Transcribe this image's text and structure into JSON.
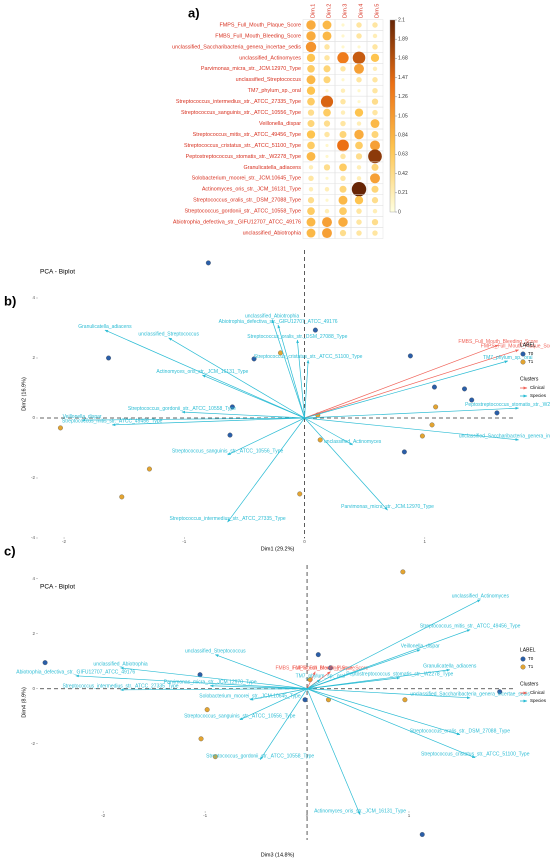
{
  "chart_data": [
    {
      "type": "corrplot",
      "panel": "a)",
      "rows": [
        "FMPS_Full_Mouth_Plaque_Score",
        "FMBS_Full_Mouth_Bleeding_Score",
        "unclassified_Saccharibacteria_genera_incertae_sedis",
        "unclassified_Actinomyces",
        "Parvimonas_micra_str._JCM.12970_Type",
        "unclassified_Streptococcus",
        "TM7_phylum_sp._oral",
        "Streptococcus_intermedius_str._ATCC_27335_Type",
        "Streptococcus_sanguinis_str._ATCC_10556_Type",
        "Veillonella_dispar",
        "Streptococcus_mitis_str._ATCC_49456_Type",
        "Streptococcus_cristatus_str._ATCC_51100_Type",
        "Peptostreptococcus_stomatis_str._W2278_Type",
        "Granulicatella_adiacens",
        "Solobacterium_moorei_str._JCM.10645_Type",
        "Actinomyces_oris_str._JCM_16131_Type",
        "Streptococcus_oralis_str._DSM_27088_Type",
        "Streptococcus_gordonii_str._ATCC_10558_Type",
        "Abiotrophia_defectiva_str._GIFU12707_ATCC_49176",
        "unclassified_Abiotrophia"
      ],
      "columns": [
        "Dim.1",
        "Dim.2",
        "Dim.3",
        "Dim.4",
        "Dim.5"
      ],
      "values": [
        [
          0.9,
          0.8,
          0.1,
          0.3,
          0.3
        ],
        [
          0.9,
          0.8,
          0.1,
          0.3,
          0.2
        ],
        [
          1.1,
          0.3,
          0.1,
          0.1,
          0.3
        ],
        [
          0.7,
          0.3,
          1.3,
          1.6,
          0.7
        ],
        [
          0.6,
          0.5,
          0.3,
          1.0,
          0.2
        ],
        [
          0.8,
          0.5,
          0.1,
          0.3,
          0.3
        ],
        [
          0.7,
          0.1,
          0.2,
          0.1,
          0.3
        ],
        [
          0.6,
          1.5,
          0.3,
          0.1,
          0.4
        ],
        [
          0.4,
          0.6,
          0.2,
          0.7,
          0.3
        ],
        [
          0.5,
          0.4,
          0.3,
          0.2,
          0.8
        ],
        [
          0.7,
          0.3,
          0.5,
          0.9,
          0.5
        ],
        [
          0.6,
          0.1,
          1.4,
          0.6,
          1.0
        ],
        [
          0.8,
          0.1,
          0.3,
          0.4,
          1.9
        ],
        [
          0.2,
          0.4,
          0.6,
          0.2,
          0.5
        ],
        [
          0.3,
          0.1,
          0.3,
          0.2,
          1.0
        ],
        [
          0.2,
          0.2,
          0.5,
          2.1,
          0.5
        ],
        [
          0.4,
          0.1,
          0.8,
          0.7,
          0.4
        ],
        [
          0.6,
          0.2,
          0.6,
          0.3,
          0.2
        ],
        [
          0.8,
          1.0,
          0.9,
          0.3,
          0.4
        ],
        [
          0.8,
          1.0,
          0.4,
          0.3,
          0.3
        ]
      ],
      "colors": [
        "#ffffe0",
        "#fec44f",
        "#ec7014",
        "#662506"
      ],
      "clim": [
        0,
        2.1
      ],
      "cticks": [
        0,
        0.21,
        0.42,
        0.63,
        0.84,
        1.05,
        1.26,
        1.47,
        1.68,
        1.89,
        2.1
      ]
    },
    {
      "type": "biplot",
      "panel": "b)",
      "title": "PCA - Biplot",
      "xlabel": "Dim1 (29.2%)",
      "ylabel": "Dim2 (16.9%)",
      "xlim": [
        -2.2,
        1.75
      ],
      "ylim": [
        -4.0,
        5.6
      ],
      "xticks": [
        -2,
        -1,
        0,
        1
      ],
      "yticks": [
        -4,
        -2,
        0,
        2,
        4
      ],
      "legend_title": "LABEL",
      "series": [
        {
          "name": "T0",
          "color": "#2a5ea8",
          "x": [
            -0.8,
            -1.63,
            -0.42,
            -0.6,
            -0.62,
            0.88,
            1.08,
            1.33,
            1.39,
            0.83,
            1.6,
            0.09
          ],
          "values": [
            5.17,
            2.0,
            1.97,
            0.37,
            -0.57,
            2.07,
            1.03,
            0.97,
            0.6,
            -1.13,
            0.17,
            2.93
          ]
        },
        {
          "name": "T1",
          "color": "#e3a431",
          "x": [
            -2.03,
            -1.29,
            -1.52,
            -0.2,
            0.11,
            0.13,
            -0.04,
            1.09,
            1.06,
            0.98
          ],
          "values": [
            -0.33,
            -1.7,
            -2.63,
            2.17,
            0.1,
            -0.73,
            -2.53,
            0.37,
            -0.23,
            -0.6
          ]
        }
      ],
      "vectors_title": "Clusters",
      "vectors": [
        {
          "name": "Clinical",
          "color": "#f0645a",
          "labels": [
            "FMBS_Full_Mouth_Bleeding_Score",
            "FMPS_Full_Mouth_Plaque_Score"
          ],
          "x": [
            1.61,
            1.78
          ],
          "values": [
            2.43,
            2.27
          ]
        },
        {
          "name": "Species",
          "color": "#2bbcd4",
          "labels": [
            "TM7_phylum_sp._oral",
            "Peptostreptococcus_stomatis_str._W2278_Type",
            "unclassified_Saccharibacteria_genera_incertae_sedis",
            "unclassified_Actinomyces",
            "Parvimonas_micra_str._JCM.12970_Type",
            "Streptococcus_intermedius_str._ATCC_27335_Type",
            "Streptococcus_sanguinis_str._ATCC_10556_Type",
            "Streptococcus_mitis_str._ATCC_49456_Type",
            "Veillonella_dispar",
            "Streptococcus_gordonii_str._ATCC_10558_Type",
            "Actinomyces_oris_str._JCM_16131_Type",
            "Granulicatella_adiacens",
            "unclassified_Streptococcus",
            "unclassified_Abiotrophia",
            "Abiotrophia_defectiva_str._GIFU12707_ATCC_49176",
            "Streptococcus_oralis_str._DSM_27088_Type",
            "Streptococcus_cristatus_str._ATCC_51100_Type"
          ],
          "x": [
            1.69,
            1.78,
            1.78,
            0.4,
            0.69,
            -0.64,
            -0.64,
            -1.6,
            -1.85,
            -1.02,
            -0.85,
            -1.66,
            -1.13,
            -0.27,
            -0.22,
            -0.06,
            0.03
          ],
          "values": [
            1.9,
            0.33,
            -0.73,
            -0.9,
            -3.07,
            -3.47,
            -1.23,
            -0.23,
            -0.07,
            0.2,
            1.43,
            2.93,
            2.67,
            3.27,
            3.1,
            2.6,
            1.93
          ]
        }
      ]
    },
    {
      "type": "biplot",
      "panel": "c)",
      "title": "PCA - Biplot",
      "xlabel": "Dim3 (14.8%)",
      "ylabel": "Dim4 (8.9%)",
      "xlim": [
        -2.62,
        2.04
      ],
      "ylim": [
        -5.5,
        4.5
      ],
      "xticks": [
        -2,
        -1,
        0,
        1
      ],
      "yticks": [
        -2,
        0,
        2,
        4
      ],
      "legend_title": "LABEL",
      "series": [
        {
          "name": "T0",
          "color": "#2a5ea8",
          "x": [
            -2.57,
            -1.05,
            -0.02,
            0.11,
            0.23,
            1.13,
            1.89
          ],
          "values": [
            0.95,
            0.51,
            -0.4,
            1.24,
            0.76,
            -5.3,
            -0.11
          ]
        },
        {
          "name": "T1",
          "color": "#e3a431",
          "x": [
            0.94,
            -1.04,
            -0.9,
            -0.98,
            0.03,
            0.96,
            0.21
          ],
          "values": [
            4.25,
            -1.82,
            -2.47,
            -0.76,
            0.33,
            -0.4,
            -0.4
          ]
        }
      ],
      "vectors_title": "Clusters",
      "vectors": [
        {
          "name": "Clinical",
          "color": "#f0645a",
          "labels": [
            "FMPS_Full_Mouth_Plaque_Score",
            "FMBS_Full_Mouth_Bleeding_Score"
          ],
          "x": [
            0.23,
            0.08
          ],
          "values": [
            0.62,
            0.62
          ]
        },
        {
          "name": "Species",
          "color": "#2bbcd4",
          "labels": [
            "unclassified_Actinomyces",
            "Streptococcus_mitis_str._ATCC_49456_Type",
            "Veillonella_dispar",
            "Granulicatella_adiacens",
            "Peptostreptococcus_stomatis_str._W2278_Type",
            "TM7_phylum_sp._oral",
            "unclassified_Saccharibacteria_genera_incertae_sedis",
            "Solobacterium_moorei_str._JCM.10645_Type",
            "Streptococcus_oralis_str._DSM_27088_Type",
            "Streptococcus_cristatus_str._ATCC_51100_Type",
            "Actinomyces_oris_str._JCM_16131_Type",
            "Streptococcus_gordonii_str._ATCC_10558_Type",
            "Streptococcus_sanguinis_str._ATCC_10556_Type",
            "Streptococcus_intermedius_str._ATCC_27335_Type",
            "Abiotrophia_defectiva_str._GIFU12707_ATCC_49176",
            "unclassified_Abiotrophia",
            "unclassified_Streptococcus",
            "Parvimonas_micra_str._JCM.12970_Type"
          ],
          "x": [
            1.7,
            1.6,
            1.11,
            1.4,
            0.91,
            0.13,
            1.6,
            -0.56,
            1.5,
            1.65,
            0.52,
            -0.46,
            -0.66,
            -1.83,
            -2.27,
            -1.83,
            -0.9,
            -0.95
          ],
          "values": [
            3.24,
            2.15,
            1.42,
            0.69,
            0.4,
            0.33,
            -0.33,
            -0.4,
            -1.67,
            -2.51,
            -4.58,
            -2.58,
            -1.13,
            -0.04,
            0.47,
            0.76,
            1.24,
            0.11
          ]
        }
      ]
    }
  ]
}
